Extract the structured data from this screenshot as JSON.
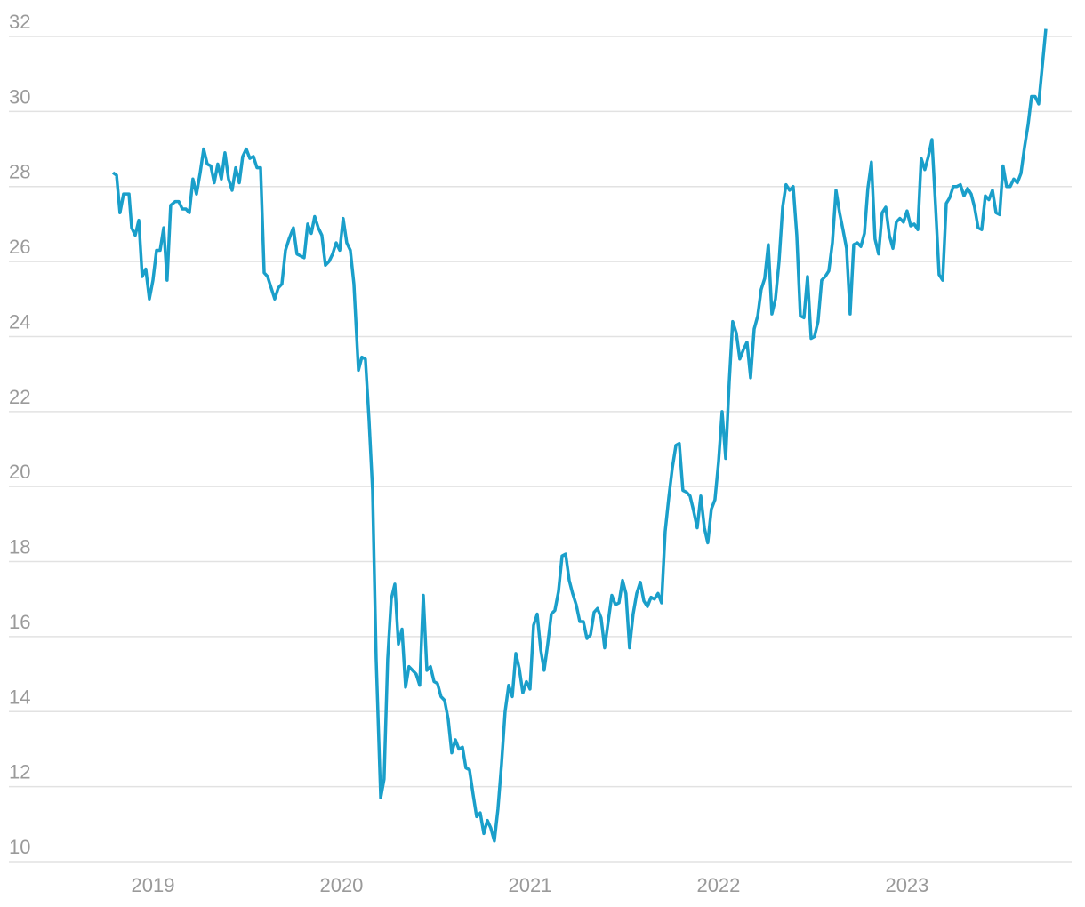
{
  "chart_data": {
    "type": "line",
    "x": [
      2018.788,
      2018.807,
      2018.825,
      2018.844,
      2018.873,
      2018.887,
      2018.906,
      2018.925,
      2018.943,
      2018.962,
      2018.981,
      2019.0,
      2019.019,
      2019.038,
      2019.057,
      2019.075,
      2019.094,
      2019.118,
      2019.137,
      2019.156,
      2019.175,
      2019.193,
      2019.212,
      2019.231,
      2019.25,
      2019.269,
      2019.288,
      2019.307,
      2019.325,
      2019.344,
      2019.363,
      2019.382,
      2019.401,
      2019.42,
      2019.439,
      2019.458,
      2019.476,
      2019.495,
      2019.514,
      2019.533,
      2019.552,
      2019.571,
      2019.59,
      2019.608,
      2019.627,
      2019.646,
      2019.665,
      2019.684,
      2019.703,
      2019.722,
      2019.745,
      2019.764,
      2019.802,
      2019.821,
      2019.84,
      2019.858,
      2019.877,
      2019.896,
      2019.915,
      2019.934,
      2019.953,
      2019.972,
      2019.991,
      2020.009,
      2020.028,
      2020.047,
      2020.066,
      2020.09,
      2020.108,
      2020.127,
      2020.146,
      2020.165,
      2020.184,
      2020.208,
      2020.226,
      2020.245,
      2020.264,
      2020.283,
      2020.302,
      2020.321,
      2020.34,
      2020.358,
      2020.377,
      2020.396,
      2020.415,
      2020.434,
      2020.453,
      2020.472,
      2020.491,
      2020.509,
      2020.528,
      2020.547,
      2020.566,
      2020.585,
      2020.604,
      2020.623,
      2020.642,
      2020.66,
      2020.679,
      2020.698,
      2020.717,
      2020.736,
      2020.755,
      2020.774,
      2020.792,
      2020.811,
      2020.83,
      2020.849,
      2020.868,
      2020.887,
      2020.906,
      2020.925,
      2020.943,
      2020.962,
      2020.981,
      2021.0,
      2021.019,
      2021.038,
      2021.057,
      2021.075,
      2021.094,
      2021.113,
      2021.132,
      2021.151,
      2021.17,
      2021.189,
      2021.208,
      2021.226,
      2021.245,
      2021.264,
      2021.283,
      2021.302,
      2021.321,
      2021.34,
      2021.358,
      2021.377,
      2021.396,
      2021.415,
      2021.434,
      2021.453,
      2021.472,
      2021.491,
      2021.509,
      2021.528,
      2021.547,
      2021.566,
      2021.585,
      2021.604,
      2021.623,
      2021.642,
      2021.66,
      2021.679,
      2021.698,
      2021.717,
      2021.736,
      2021.755,
      2021.774,
      2021.792,
      2021.811,
      2021.83,
      2021.849,
      2021.868,
      2021.887,
      2021.906,
      2021.925,
      2021.943,
      2021.962,
      2021.981,
      2022.0,
      2022.019,
      2022.038,
      2022.057,
      2022.075,
      2022.094,
      2022.113,
      2022.132,
      2022.151,
      2022.17,
      2022.189,
      2022.208,
      2022.226,
      2022.245,
      2022.264,
      2022.283,
      2022.302,
      2022.321,
      2022.34,
      2022.358,
      2022.377,
      2022.396,
      2022.415,
      2022.434,
      2022.453,
      2022.472,
      2022.491,
      2022.509,
      2022.528,
      2022.547,
      2022.566,
      2022.585,
      2022.604,
      2022.623,
      2022.642,
      2022.66,
      2022.679,
      2022.698,
      2022.717,
      2022.736,
      2022.755,
      2022.774,
      2022.792,
      2022.811,
      2022.83,
      2022.849,
      2022.868,
      2022.887,
      2022.906,
      2022.925,
      2022.943,
      2022.962,
      2022.981,
      2023.0,
      2023.019,
      2023.038,
      2023.057,
      2023.075,
      2023.094,
      2023.113,
      2023.132,
      2023.151,
      2023.17,
      2023.189,
      2023.208,
      2023.226,
      2023.245,
      2023.264,
      2023.283,
      2023.302,
      2023.321,
      2023.34,
      2023.358,
      2023.377,
      2023.396,
      2023.415,
      2023.434,
      2023.453,
      2023.472,
      2023.491,
      2023.509,
      2023.528,
      2023.547,
      2023.566,
      2023.585,
      2023.604,
      2023.623,
      2023.642,
      2023.66,
      2023.679,
      2023.698,
      2023.717,
      2023.736
    ],
    "series": [
      {
        "color": "#1a9fca",
        "values": [
          28.37,
          28.3,
          27.3,
          27.8,
          27.8,
          26.9,
          26.7,
          27.1,
          25.6,
          25.8,
          25.0,
          25.5,
          26.3,
          26.3,
          26.9,
          25.5,
          27.5,
          27.6,
          27.6,
          27.4,
          27.4,
          27.3,
          28.2,
          27.8,
          28.35,
          29.0,
          28.6,
          28.55,
          28.1,
          28.6,
          28.2,
          28.9,
          28.2,
          27.9,
          28.5,
          28.1,
          28.8,
          29.0,
          28.75,
          28.8,
          28.5,
          28.5,
          25.7,
          25.6,
          25.3,
          25.0,
          25.3,
          25.4,
          26.3,
          26.6,
          26.9,
          26.2,
          26.1,
          27.0,
          26.75,
          27.2,
          26.9,
          26.7,
          25.9,
          26.0,
          26.2,
          26.5,
          26.3,
          27.15,
          26.5,
          26.3,
          25.4,
          23.1,
          23.45,
          23.4,
          21.8,
          19.9,
          15.4,
          11.7,
          12.2,
          15.4,
          17.0,
          17.4,
          15.8,
          16.2,
          14.65,
          15.2,
          15.1,
          15.0,
          14.7,
          17.1,
          15.1,
          15.2,
          14.8,
          14.75,
          14.4,
          14.3,
          13.8,
          12.9,
          13.25,
          13.0,
          13.05,
          12.5,
          12.45,
          11.8,
          11.2,
          11.3,
          10.75,
          11.1,
          10.9,
          10.55,
          11.4,
          12.6,
          14.0,
          14.7,
          14.4,
          15.55,
          15.15,
          14.5,
          14.8,
          14.6,
          16.3,
          16.6,
          15.65,
          15.1,
          15.8,
          16.6,
          16.7,
          17.2,
          18.15,
          18.2,
          17.5,
          17.15,
          16.85,
          16.4,
          16.4,
          15.95,
          16.05,
          16.65,
          16.75,
          16.5,
          15.7,
          16.4,
          17.1,
          16.85,
          16.9,
          17.5,
          17.15,
          15.7,
          16.6,
          17.15,
          17.45,
          16.95,
          16.8,
          17.05,
          17.0,
          17.15,
          16.9,
          18.8,
          19.7,
          20.5,
          21.1,
          21.15,
          19.9,
          19.85,
          19.75,
          19.35,
          18.9,
          19.75,
          18.9,
          18.5,
          19.4,
          19.65,
          20.65,
          22.0,
          20.75,
          22.8,
          24.4,
          24.1,
          23.4,
          23.65,
          23.85,
          22.9,
          24.2,
          24.55,
          25.25,
          25.55,
          26.45,
          24.6,
          25.0,
          26.0,
          27.45,
          28.05,
          27.9,
          28.0,
          26.7,
          24.55,
          24.5,
          25.6,
          23.95,
          24.0,
          24.4,
          25.5,
          25.6,
          25.75,
          26.5,
          27.9,
          27.3,
          26.85,
          26.35,
          24.6,
          26.45,
          26.5,
          26.4,
          26.75,
          27.95,
          28.65,
          26.6,
          26.2,
          27.3,
          27.45,
          26.7,
          26.35,
          27.05,
          27.15,
          27.05,
          27.35,
          26.95,
          27.0,
          26.85,
          28.75,
          28.45,
          28.8,
          29.25,
          27.5,
          25.65,
          25.5,
          27.55,
          27.7,
          28.0,
          28.0,
          28.05,
          27.75,
          27.95,
          27.8,
          27.45,
          26.9,
          26.85,
          27.75,
          27.65,
          27.9,
          27.3,
          27.25,
          28.55,
          28.0,
          28.0,
          28.2,
          28.1,
          28.35,
          29.05,
          29.65,
          30.4,
          30.4,
          30.2,
          31.2,
          32.2
        ]
      }
    ],
    "xlim": [
      2018.236,
      2023.873
    ],
    "xticks": [
      2019,
      2020,
      2021,
      2022,
      2023
    ],
    "ylim": [
      10,
      32
    ],
    "yticks": [
      10,
      12,
      14,
      16,
      18,
      20,
      22,
      24,
      26,
      28,
      30,
      32
    ],
    "grid": true
  }
}
